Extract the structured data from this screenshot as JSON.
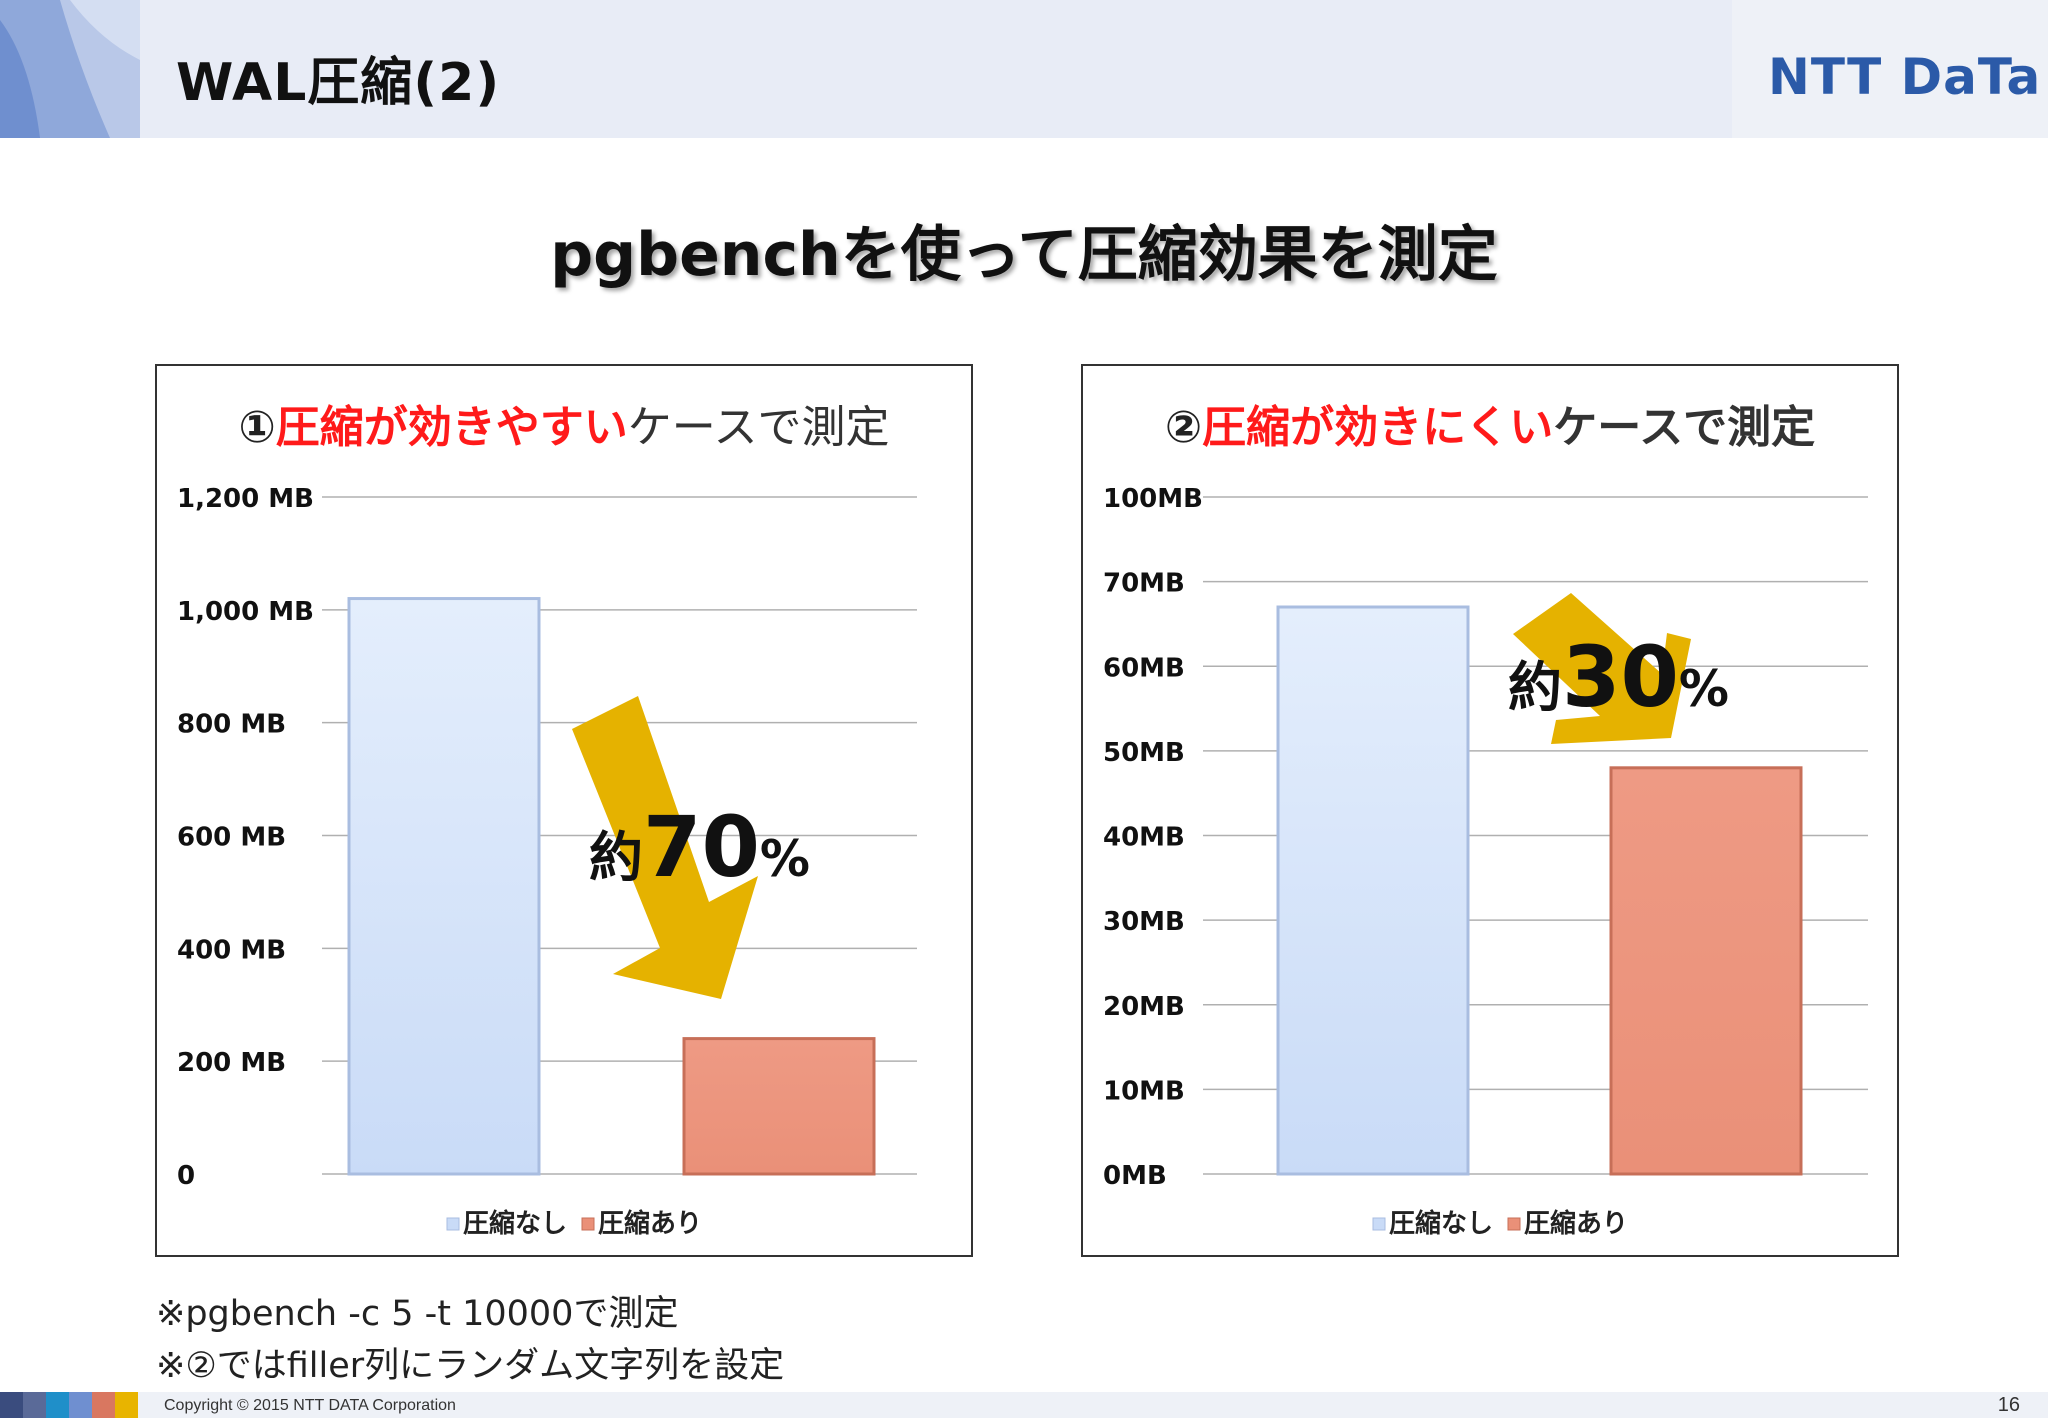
{
  "header": {
    "title": "WAL圧縮(2)",
    "logo_text": "NTT DaTa"
  },
  "main_heading": "pgbenchを使って圧縮効果を測定",
  "colors": {
    "uncompressed_bar": "#c9dbf7",
    "compressed_bar": "#ea9078",
    "arrow": "#e5b200",
    "title_red": "#ff1a1a",
    "footer_strip": [
      "#3a4c7e",
      "#5a6a98",
      "#1f8fc9",
      "#6f8fd0",
      "#d97760",
      "#e8b400"
    ]
  },
  "chart_data": [
    {
      "type": "bar",
      "title_prefix": "①",
      "title_emphasis": "圧縮が効きやすい",
      "title_suffix": "ケースで測定",
      "title_suffix_bold": false,
      "categories": [
        "圧縮なし",
        "圧縮あり"
      ],
      "values": [
        1020,
        240
      ],
      "unit": "MB",
      "ylim": [
        0,
        1200
      ],
      "yticks": [
        {
          "value": 0,
          "label": "0"
        },
        {
          "value": 200,
          "label": "200 MB"
        },
        {
          "value": 400,
          "label": "400 MB"
        },
        {
          "value": 600,
          "label": "600 MB"
        },
        {
          "value": 800,
          "label": "800 MB"
        },
        {
          "value": 1000,
          "label": "1,000 MB"
        },
        {
          "value": 1200,
          "label": "1,200 MB"
        }
      ],
      "legend": [
        "圧縮なし",
        "圧縮あり"
      ],
      "legend_position": "bottom",
      "grid": true,
      "annotation": {
        "prefix": "約",
        "number": "70",
        "suffix": "%"
      }
    },
    {
      "type": "bar",
      "title_prefix": "②",
      "title_emphasis": "圧縮が効きにくい",
      "title_suffix": "ケースで測定",
      "title_suffix_bold": true,
      "categories": [
        "圧縮なし",
        "圧縮あり"
      ],
      "values": [
        67,
        48
      ],
      "unit": "MB",
      "ylim": [
        0,
        100
      ],
      "yticks": [
        {
          "value": 0,
          "label": "0MB"
        },
        {
          "value": 10,
          "label": "10MB"
        },
        {
          "value": 20,
          "label": "20MB"
        },
        {
          "value": 30,
          "label": "30MB"
        },
        {
          "value": 40,
          "label": "40MB"
        },
        {
          "value": 50,
          "label": "50MB"
        },
        {
          "value": 60,
          "label": "60MB"
        },
        {
          "value": 70,
          "label": "70MB"
        },
        {
          "value": 100,
          "label": "100MB"
        }
      ],
      "legend": [
        "圧縮なし",
        "圧縮あり"
      ],
      "legend_position": "bottom",
      "grid": true,
      "annotation": {
        "prefix": "約",
        "number": "30",
        "suffix": "%"
      }
    }
  ],
  "notes": [
    "※pgbench -c 5 -t 10000で測定",
    "※②ではfiller列にランダム文字列を設定"
  ],
  "footer": {
    "copyright": "Copyright © 2015 NTT DATA Corporation",
    "page_number": "16"
  }
}
